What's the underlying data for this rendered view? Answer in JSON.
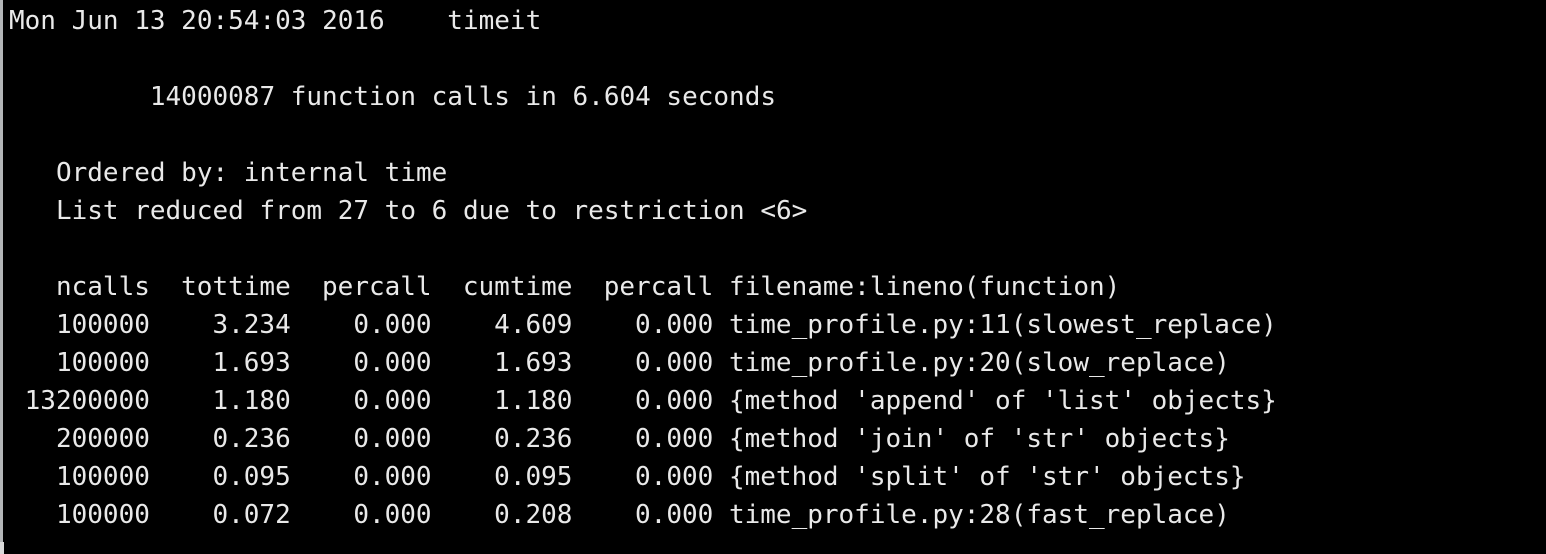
{
  "terminal": {
    "colors": {
      "background": "#000000",
      "text": "#e9e9e9",
      "window_edge": "#b3b6b8"
    },
    "session_line": {
      "date": "Mon Jun 13 20:54:03 2016",
      "title": "timeit"
    },
    "summary_line": "14000087 function calls in 6.604 seconds",
    "ordered_by_line": "Ordered by: internal time",
    "list_reduced_line": "List reduced from 27 to 6 due to restriction <6>",
    "profile_table": {
      "headers": [
        "ncalls",
        "tottime",
        "percall",
        "cumtime",
        "percall",
        "filename:lineno(function)"
      ],
      "rows": [
        [
          "100000",
          "3.234",
          "0.000",
          "4.609",
          "0.000",
          "time_profile.py:11(slowest_replace)"
        ],
        [
          "100000",
          "1.693",
          "0.000",
          "1.693",
          "0.000",
          "time_profile.py:20(slow_replace)"
        ],
        [
          "13200000",
          "1.180",
          "0.000",
          "1.180",
          "0.000",
          "{method 'append' of 'list' objects}"
        ],
        [
          "200000",
          "0.236",
          "0.000",
          "0.236",
          "0.000",
          "{method 'join' of 'str' objects}"
        ],
        [
          "100000",
          "0.095",
          "0.000",
          "0.095",
          "0.000",
          "{method 'split' of 'str' objects}"
        ],
        [
          "100000",
          "0.072",
          "0.000",
          "0.208",
          "0.000",
          "time_profile.py:28(fast_replace)"
        ]
      ]
    }
  }
}
